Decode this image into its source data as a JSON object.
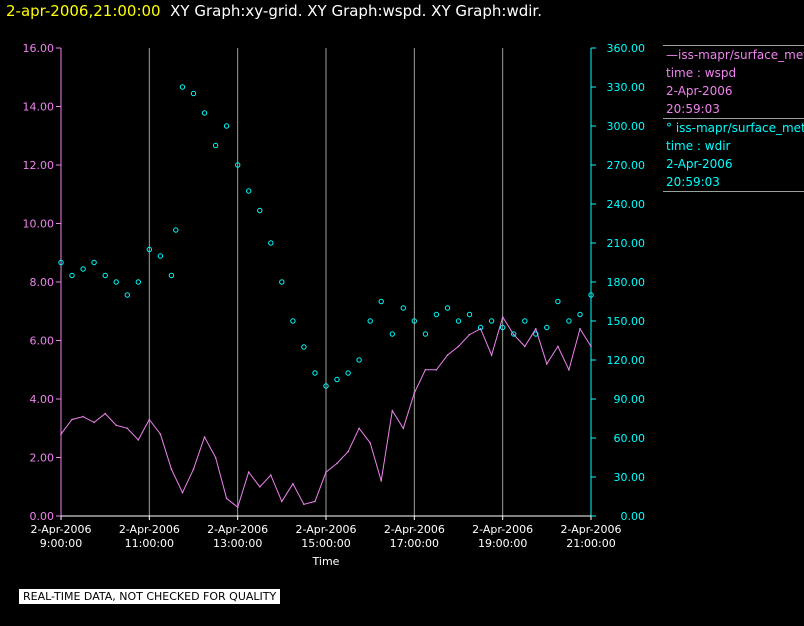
{
  "header": {
    "timestamp": "2-apr-2006,21:00:00",
    "graphs": "XY Graph:xy-grid.  XY Graph:wspd.  XY Graph:wdir."
  },
  "legend": {
    "series1": {
      "line1": "—iss-mapr/surface_meteorology",
      "line2": "time : wspd",
      "line3": "2-Apr-2006",
      "line4": "20:59:03"
    },
    "series2": {
      "line1": "° iss-mapr/surface_meteorology",
      "line2": "time : wdir",
      "line3": "2-Apr-2006",
      "line4": "20:59:03"
    }
  },
  "footer_note": "REAL-TIME DATA, NOT CHECKED FOR QUALITY",
  "colors": {
    "wspd": "#ee82ee",
    "wdir": "#00ffff",
    "background": "#000000",
    "grid": "#9aa09a"
  },
  "chart_data": {
    "type": "line",
    "title": "",
    "xlabel": "Time",
    "x_ticks": [
      "2-Apr-2006\n9:00:00",
      "2-Apr-2006\n11:00:00",
      "2-Apr-2006\n13:00:00",
      "2-Apr-2006\n15:00:00",
      "2-Apr-2006\n17:00:00",
      "2-Apr-2006\n19:00:00",
      "2-Apr-2006\n21:00:00"
    ],
    "xlim_hours": [
      9,
      21
    ],
    "y_left": {
      "lim": [
        0,
        16
      ],
      "ticks": [
        "0.00",
        "2.00",
        "4.00",
        "6.00",
        "8.00",
        "10.00",
        "12.00",
        "14.00",
        "16.00"
      ]
    },
    "y_right": {
      "lim": [
        0,
        360
      ],
      "ticks": [
        "0.00",
        "30.00",
        "60.00",
        "90.00",
        "120.00",
        "150.00",
        "180.00",
        "210.00",
        "240.00",
        "270.00",
        "300.00",
        "330.00",
        "360.00"
      ]
    },
    "grid": "vertical",
    "legend": "right",
    "series": [
      {
        "name": "iss-mapr/surface_meteorology time : wspd",
        "style": "line",
        "axis": "left",
        "points": [
          [
            9.0,
            2.8
          ],
          [
            9.25,
            3.3
          ],
          [
            9.5,
            3.4
          ],
          [
            9.75,
            3.2
          ],
          [
            10.0,
            3.5
          ],
          [
            10.25,
            3.1
          ],
          [
            10.5,
            3.0
          ],
          [
            10.75,
            2.6
          ],
          [
            11.0,
            3.3
          ],
          [
            11.25,
            2.8
          ],
          [
            11.5,
            1.6
          ],
          [
            11.75,
            0.8
          ],
          [
            12.0,
            1.6
          ],
          [
            12.25,
            2.7
          ],
          [
            12.5,
            2.0
          ],
          [
            12.75,
            0.6
          ],
          [
            13.0,
            0.3
          ],
          [
            13.25,
            1.5
          ],
          [
            13.5,
            1.0
          ],
          [
            13.75,
            1.4
          ],
          [
            14.0,
            0.5
          ],
          [
            14.25,
            1.1
          ],
          [
            14.5,
            0.4
          ],
          [
            14.75,
            0.5
          ],
          [
            15.0,
            1.5
          ],
          [
            15.25,
            1.8
          ],
          [
            15.5,
            2.2
          ],
          [
            15.75,
            3.0
          ],
          [
            16.0,
            2.5
          ],
          [
            16.25,
            1.2
          ],
          [
            16.5,
            3.6
          ],
          [
            16.75,
            3.0
          ],
          [
            17.0,
            4.2
          ],
          [
            17.25,
            5.0
          ],
          [
            17.5,
            5.0
          ],
          [
            17.75,
            5.5
          ],
          [
            18.0,
            5.8
          ],
          [
            18.25,
            6.2
          ],
          [
            18.5,
            6.4
          ],
          [
            18.75,
            5.5
          ],
          [
            19.0,
            6.8
          ],
          [
            19.25,
            6.2
          ],
          [
            19.5,
            5.8
          ],
          [
            19.75,
            6.4
          ],
          [
            20.0,
            5.2
          ],
          [
            20.25,
            5.8
          ],
          [
            20.5,
            5.0
          ],
          [
            20.75,
            6.4
          ],
          [
            21.0,
            5.8
          ]
        ]
      },
      {
        "name": "iss-mapr/surface_meteorology time : wdir",
        "style": "scatter",
        "axis": "right",
        "points": [
          [
            9.0,
            195
          ],
          [
            9.25,
            185
          ],
          [
            9.5,
            190
          ],
          [
            9.75,
            195
          ],
          [
            10.0,
            185
          ],
          [
            10.25,
            180
          ],
          [
            10.5,
            170
          ],
          [
            10.75,
            180
          ],
          [
            11.0,
            205
          ],
          [
            11.25,
            200
          ],
          [
            11.5,
            185
          ],
          [
            11.6,
            220
          ],
          [
            11.75,
            330
          ],
          [
            12.0,
            325
          ],
          [
            12.25,
            310
          ],
          [
            12.5,
            285
          ],
          [
            12.75,
            300
          ],
          [
            13.0,
            270
          ],
          [
            13.25,
            250
          ],
          [
            13.5,
            235
          ],
          [
            13.75,
            210
          ],
          [
            14.0,
            180
          ],
          [
            14.25,
            150
          ],
          [
            14.5,
            130
          ],
          [
            14.75,
            110
          ],
          [
            15.0,
            100
          ],
          [
            15.25,
            105
          ],
          [
            15.5,
            110
          ],
          [
            15.75,
            120
          ],
          [
            16.0,
            150
          ],
          [
            16.25,
            165
          ],
          [
            16.5,
            140
          ],
          [
            16.75,
            160
          ],
          [
            17.0,
            150
          ],
          [
            17.25,
            140
          ],
          [
            17.5,
            155
          ],
          [
            17.75,
            160
          ],
          [
            18.0,
            150
          ],
          [
            18.25,
            155
          ],
          [
            18.5,
            145
          ],
          [
            18.75,
            150
          ],
          [
            19.0,
            145
          ],
          [
            19.25,
            140
          ],
          [
            19.5,
            150
          ],
          [
            19.75,
            140
          ],
          [
            20.0,
            145
          ],
          [
            20.25,
            165
          ],
          [
            20.5,
            150
          ],
          [
            20.75,
            155
          ],
          [
            21.0,
            170
          ]
        ]
      }
    ]
  }
}
